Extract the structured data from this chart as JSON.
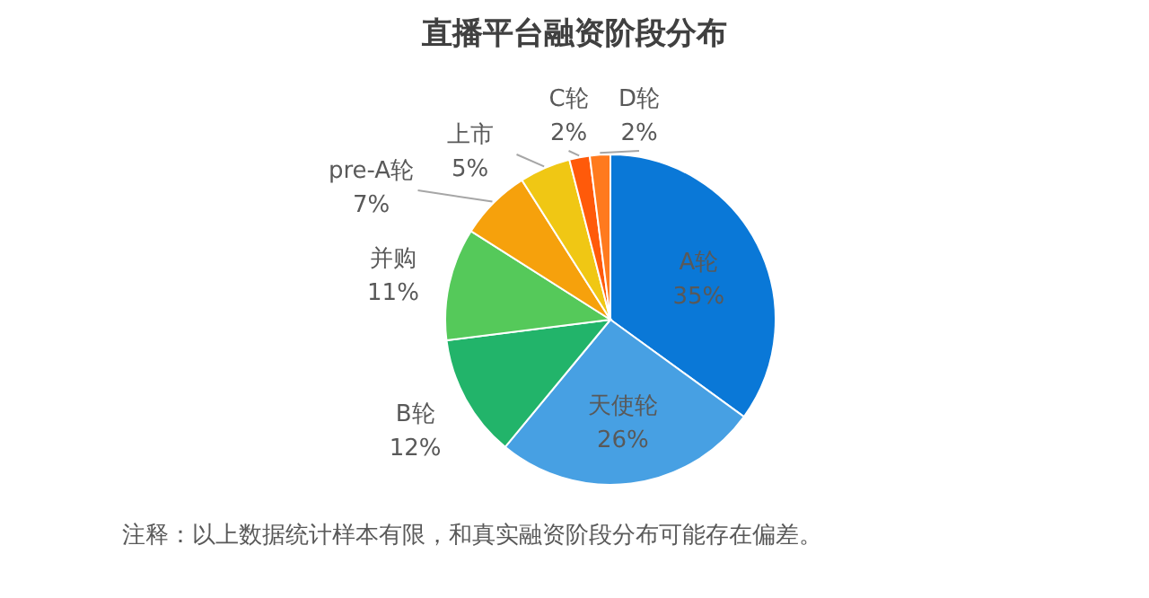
{
  "chart_data": {
    "type": "pie",
    "title": "直播平台融资阶段分布",
    "categories": [
      "A轮",
      "天使轮",
      "B轮",
      "并购",
      "pre-A轮",
      "上市",
      "C轮",
      "D轮"
    ],
    "values": [
      35,
      26,
      12,
      11,
      7,
      5,
      2,
      2
    ],
    "value_labels": [
      "35%",
      "26%",
      "12%",
      "11%",
      "7%",
      "5%",
      "2%",
      "2%"
    ],
    "colors": [
      "#0a78d7",
      "#47a0e3",
      "#22b46a",
      "#55c95a",
      "#f6a10c",
      "#f0c714",
      "#ff5a0a",
      "#ff7a1e"
    ],
    "annotations": [
      "注释：以上数据统计样本有限，和真实融资阶段分布可能存在偏差。"
    ]
  }
}
